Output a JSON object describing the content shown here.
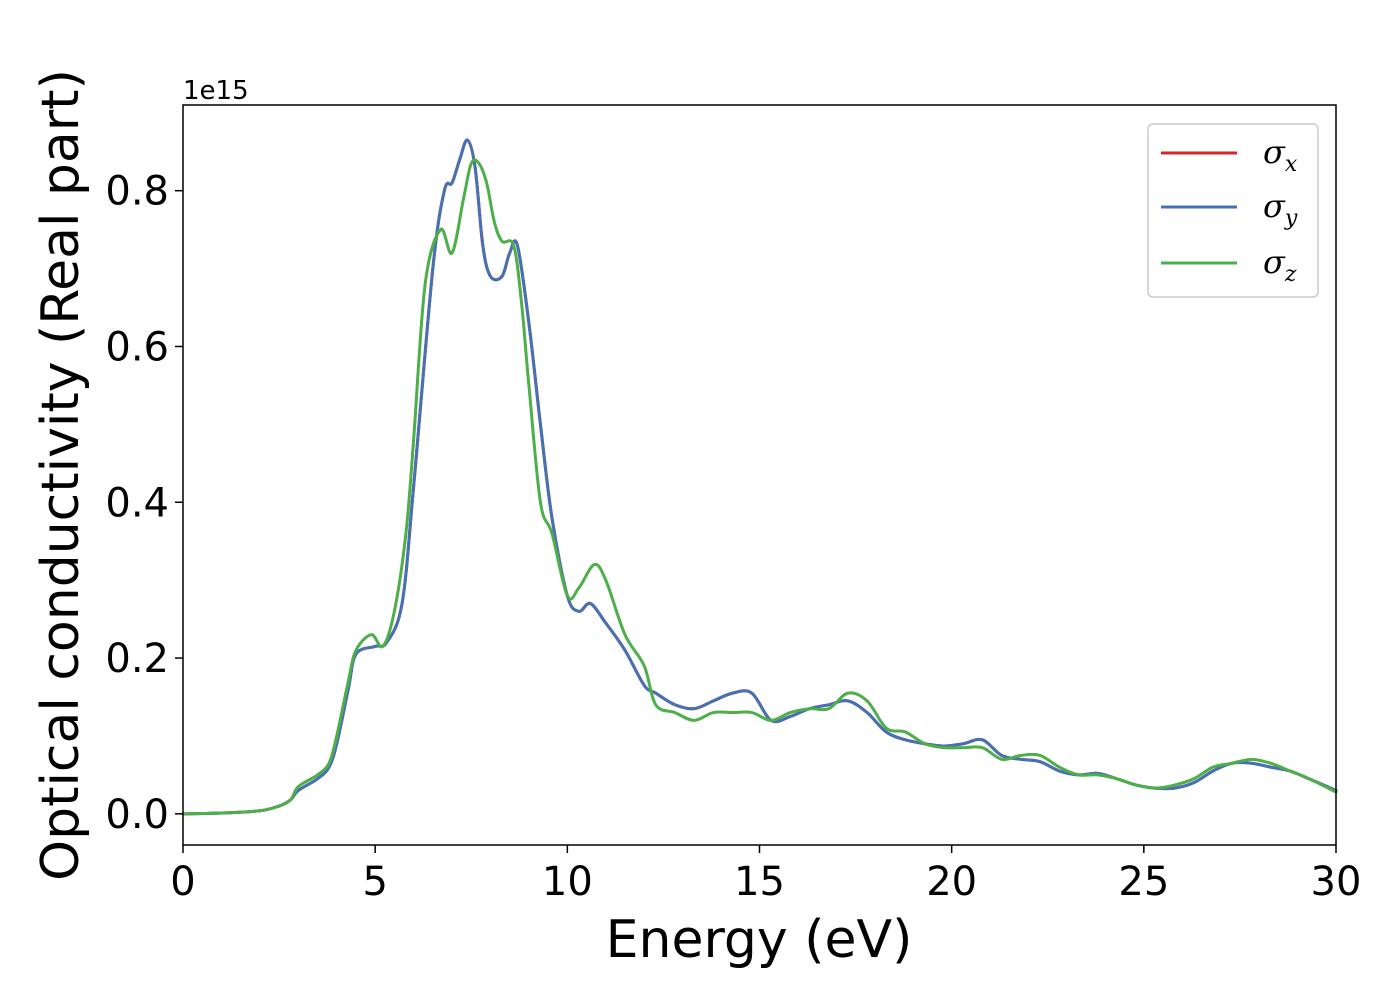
{
  "chart_data": {
    "type": "line",
    "xlabel": "Energy (eV)",
    "ylabel": "Optical conductivity (Real part)",
    "offset_text": "1e15",
    "xlim": [
      0,
      30
    ],
    "ylim": [
      -0.04,
      0.91
    ],
    "x_ticks": [
      0,
      5,
      10,
      15,
      20,
      25,
      30
    ],
    "y_ticks": [
      0.0,
      0.2,
      0.4,
      0.6,
      0.8
    ],
    "x_tick_labels": [
      "0",
      "5",
      "10",
      "15",
      "20",
      "25",
      "30"
    ],
    "y_tick_labels": [
      "0.0",
      "0.2",
      "0.4",
      "0.6",
      "0.8"
    ],
    "legend_position": "top-right",
    "grid": false,
    "series": [
      {
        "name": "σx",
        "symbol": "σ",
        "subscript": "x",
        "color": "#d62728",
        "x": [
          0,
          1,
          2,
          2.5,
          2.8,
          3,
          3.5,
          3.8,
          4,
          4.3,
          4.5,
          5,
          5.3,
          5.7,
          6,
          6.5,
          6.8,
          7,
          7.2,
          7.4,
          7.6,
          7.8,
          8,
          8.3,
          8.5,
          8.7,
          9,
          9.3,
          9.6,
          10,
          10.3,
          10.6,
          11,
          11.5,
          12,
          12.3,
          12.8,
          13.3,
          13.8,
          14.3,
          14.8,
          15.3,
          15.8,
          16.3,
          16.8,
          17.3,
          17.8,
          18.3,
          18.8,
          19.3,
          19.8,
          20.3,
          20.8,
          21.3,
          21.8,
          22.3,
          22.8,
          23.3,
          23.8,
          24.3,
          24.8,
          25.3,
          25.8,
          26.3,
          26.8,
          27.3,
          27.8,
          28.3,
          28.8,
          29.3,
          30
        ],
        "y": [
          0,
          0.001,
          0.004,
          0.01,
          0.018,
          0.03,
          0.045,
          0.06,
          0.09,
          0.16,
          0.205,
          0.215,
          0.22,
          0.27,
          0.42,
          0.7,
          0.8,
          0.81,
          0.84,
          0.865,
          0.83,
          0.73,
          0.69,
          0.69,
          0.72,
          0.73,
          0.63,
          0.5,
          0.38,
          0.28,
          0.26,
          0.27,
          0.245,
          0.21,
          0.165,
          0.155,
          0.14,
          0.135,
          0.145,
          0.155,
          0.155,
          0.12,
          0.125,
          0.135,
          0.14,
          0.145,
          0.13,
          0.105,
          0.095,
          0.09,
          0.087,
          0.09,
          0.095,
          0.075,
          0.07,
          0.067,
          0.055,
          0.05,
          0.052,
          0.045,
          0.037,
          0.033,
          0.033,
          0.04,
          0.055,
          0.065,
          0.065,
          0.06,
          0.055,
          0.045,
          0.03
        ]
      },
      {
        "name": "σy",
        "symbol": "σ",
        "subscript": "y",
        "color": "#4472b4",
        "x": [
          0,
          1,
          2,
          2.5,
          2.8,
          3,
          3.5,
          3.8,
          4,
          4.3,
          4.5,
          5,
          5.3,
          5.7,
          6,
          6.5,
          6.8,
          7,
          7.2,
          7.4,
          7.6,
          7.8,
          8,
          8.3,
          8.5,
          8.7,
          9,
          9.3,
          9.6,
          10,
          10.3,
          10.6,
          11,
          11.5,
          12,
          12.3,
          12.8,
          13.3,
          13.8,
          14.3,
          14.8,
          15.3,
          15.8,
          16.3,
          16.8,
          17.3,
          17.8,
          18.3,
          18.8,
          19.3,
          19.8,
          20.3,
          20.8,
          21.3,
          21.8,
          22.3,
          22.8,
          23.3,
          23.8,
          24.3,
          24.8,
          25.3,
          25.8,
          26.3,
          26.8,
          27.3,
          27.8,
          28.3,
          28.8,
          29.3,
          30
        ],
        "y": [
          0,
          0.001,
          0.004,
          0.01,
          0.018,
          0.03,
          0.045,
          0.06,
          0.09,
          0.16,
          0.205,
          0.215,
          0.22,
          0.27,
          0.42,
          0.7,
          0.8,
          0.81,
          0.84,
          0.865,
          0.83,
          0.73,
          0.69,
          0.69,
          0.72,
          0.73,
          0.63,
          0.5,
          0.38,
          0.28,
          0.26,
          0.27,
          0.245,
          0.21,
          0.165,
          0.155,
          0.14,
          0.135,
          0.145,
          0.155,
          0.155,
          0.12,
          0.125,
          0.135,
          0.14,
          0.145,
          0.13,
          0.105,
          0.095,
          0.09,
          0.087,
          0.09,
          0.095,
          0.075,
          0.07,
          0.067,
          0.055,
          0.05,
          0.052,
          0.045,
          0.037,
          0.033,
          0.033,
          0.04,
          0.055,
          0.065,
          0.065,
          0.06,
          0.055,
          0.045,
          0.03
        ]
      },
      {
        "name": "σz",
        "symbol": "σ",
        "subscript": "z",
        "color": "#4daf4a",
        "x": [
          0,
          1,
          2,
          2.5,
          2.8,
          3,
          3.5,
          3.8,
          4,
          4.3,
          4.5,
          4.9,
          5.2,
          5.5,
          5.8,
          6,
          6.3,
          6.7,
          7,
          7.3,
          7.5,
          7.7,
          7.9,
          8.1,
          8.3,
          8.6,
          8.8,
          9,
          9.3,
          9.6,
          10,
          10.3,
          10.7,
          11,
          11.5,
          12,
          12.3,
          12.8,
          13.3,
          13.8,
          14.3,
          14.8,
          15.3,
          15.8,
          16.3,
          16.8,
          17.3,
          17.8,
          18.3,
          18.8,
          19.3,
          19.8,
          20.3,
          20.8,
          21.3,
          21.8,
          22.3,
          22.8,
          23.3,
          23.8,
          24.3,
          24.8,
          25.3,
          25.8,
          26.3,
          26.8,
          27.3,
          27.8,
          28.3,
          28.8,
          29.3,
          30
        ],
        "y": [
          0,
          0.001,
          0.004,
          0.01,
          0.018,
          0.035,
          0.05,
          0.065,
          0.1,
          0.17,
          0.21,
          0.23,
          0.215,
          0.26,
          0.36,
          0.48,
          0.68,
          0.75,
          0.72,
          0.79,
          0.835,
          0.835,
          0.81,
          0.76,
          0.735,
          0.73,
          0.66,
          0.55,
          0.4,
          0.36,
          0.28,
          0.29,
          0.32,
          0.3,
          0.23,
          0.19,
          0.14,
          0.13,
          0.12,
          0.13,
          0.13,
          0.13,
          0.12,
          0.13,
          0.135,
          0.135,
          0.155,
          0.145,
          0.11,
          0.105,
          0.09,
          0.085,
          0.085,
          0.085,
          0.07,
          0.075,
          0.075,
          0.06,
          0.05,
          0.05,
          0.045,
          0.037,
          0.033,
          0.037,
          0.045,
          0.06,
          0.065,
          0.07,
          0.065,
          0.055,
          0.045,
          0.028
        ]
      }
    ]
  }
}
